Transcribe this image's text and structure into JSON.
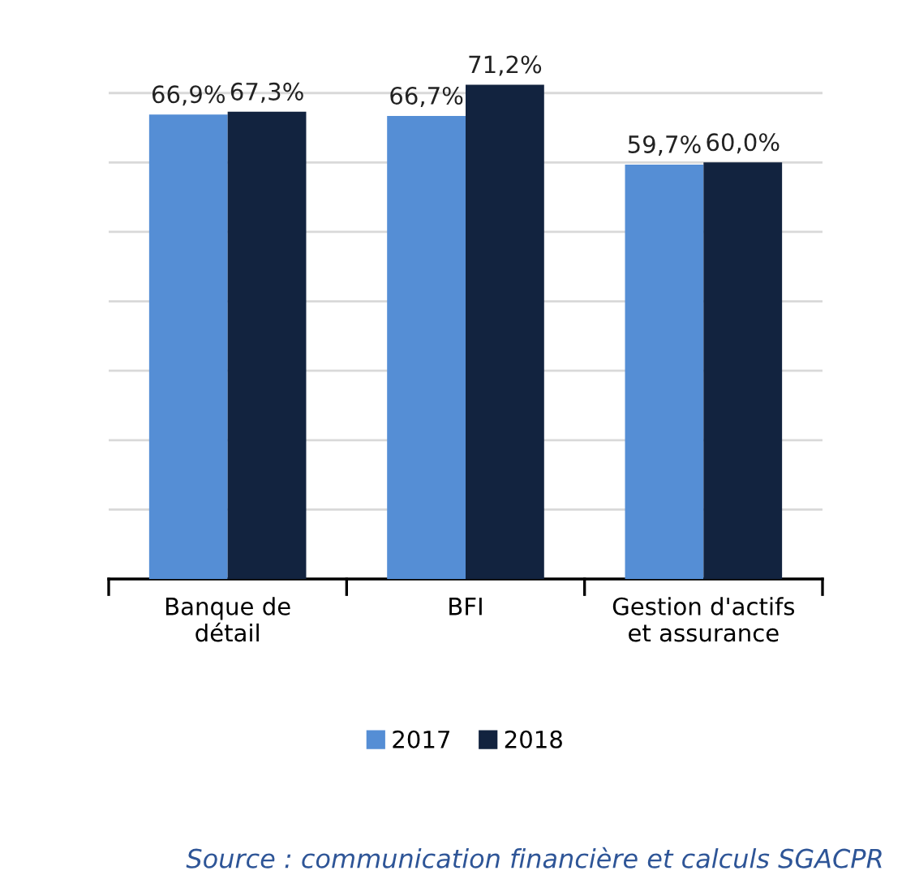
{
  "chart_data": {
    "type": "bar",
    "categories": [
      "Banque de\ndétail",
      "BFI",
      "Gestion d'actifs\net assurance"
    ],
    "series": [
      {
        "name": "2017",
        "color": "#558ed5",
        "values": [
          66.9,
          66.7,
          59.7
        ],
        "value_labels": [
          "66,9%",
          "66,7%",
          "59,7%"
        ]
      },
      {
        "name": "2018",
        "color": "#12233f",
        "values": [
          67.3,
          71.2,
          60.0
        ],
        "value_labels": [
          "67,3%",
          "71,2%",
          "60,0%"
        ]
      }
    ],
    "tick_labels": "x",
    "grid": "y",
    "legend": "bottom",
    "annotations": [
      "Source : communication financière et calculs SGACPR"
    ]
  }
}
